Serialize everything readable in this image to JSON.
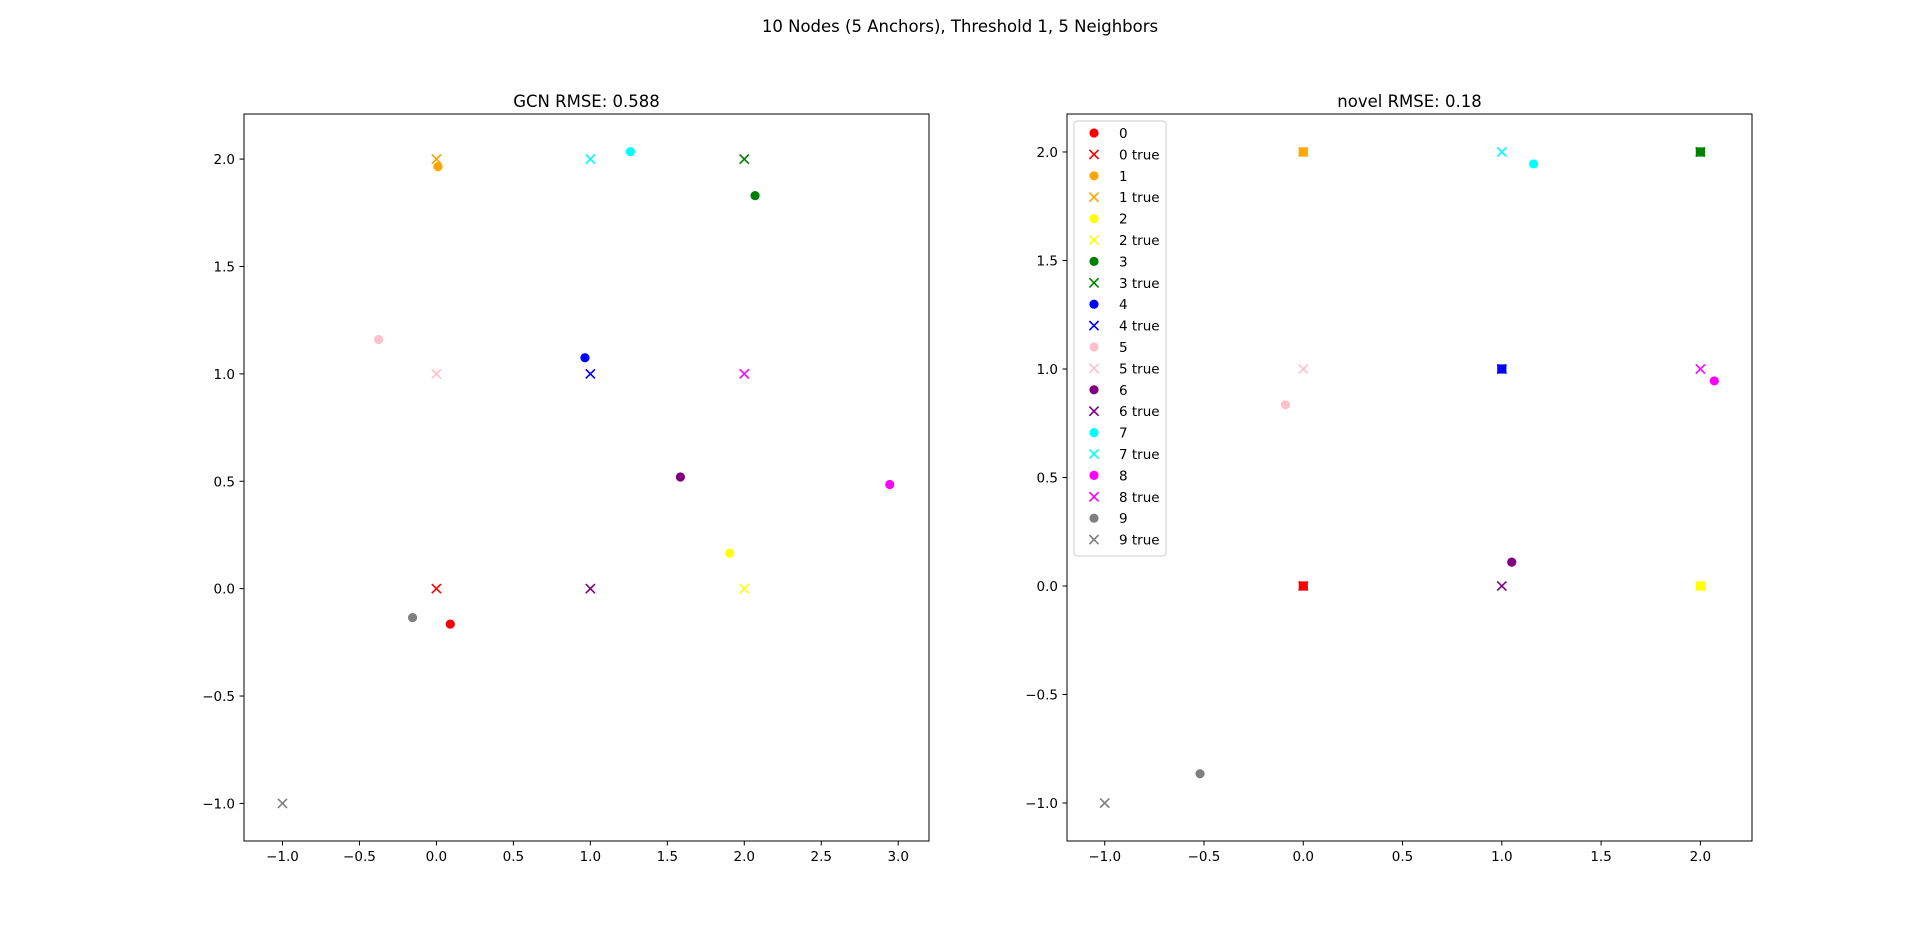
{
  "figure": {
    "suptitle": "10 Nodes (5 Anchors), Threshold 1, 5 Neighbors"
  },
  "chart_data": [
    {
      "type": "scatter",
      "title": "GCN RMSE: 0.588",
      "xlim": [
        -1.25,
        3.2
      ],
      "ylim": [
        -1.175,
        2.21
      ],
      "xticks": [
        -1.0,
        -0.5,
        0.0,
        0.5,
        1.0,
        1.5,
        2.0,
        2.5,
        3.0
      ],
      "xtick_labels": [
        "−1.0",
        "−0.5",
        "0.0",
        "0.5",
        "1.0",
        "1.5",
        "2.0",
        "2.5",
        "3.0"
      ],
      "yticks": [
        -1.0,
        -0.5,
        0.0,
        0.5,
        1.0,
        1.5,
        2.0
      ],
      "ytick_labels": [
        "−1.0",
        "−0.5",
        "0.0",
        "0.5",
        "1.0",
        "1.5",
        "2.0"
      ],
      "grid": false,
      "legend": null,
      "series": [
        {
          "node": 0,
          "color": "#ff0000",
          "pred": [
            0.09,
            -0.165
          ],
          "true": [
            0.0,
            0.0
          ],
          "pred_marker": "circle"
        },
        {
          "node": 1,
          "color": "#ffa500",
          "pred": [
            0.01,
            1.965
          ],
          "true": [
            0.0,
            2.0
          ],
          "pred_marker": "circle"
        },
        {
          "node": 2,
          "color": "#ffff00",
          "pred": [
            1.905,
            0.165
          ],
          "true": [
            2.0,
            0.0
          ],
          "pred_marker": "circle"
        },
        {
          "node": 3,
          "color": "#008000",
          "pred": [
            2.07,
            1.83
          ],
          "true": [
            2.0,
            2.0
          ],
          "pred_marker": "circle"
        },
        {
          "node": 4,
          "color": "#0000ff",
          "pred": [
            0.965,
            1.075
          ],
          "true": [
            1.0,
            1.0
          ],
          "pred_marker": "circle"
        },
        {
          "node": 5,
          "color": "#ffc0cb",
          "pred": [
            -0.375,
            1.16
          ],
          "true": [
            0.0,
            1.0
          ],
          "pred_marker": "circle"
        },
        {
          "node": 6,
          "color": "#800080",
          "pred": [
            1.585,
            0.52
          ],
          "true": [
            1.0,
            0.0
          ],
          "pred_marker": "circle"
        },
        {
          "node": 7,
          "color": "#00ffff",
          "pred": [
            1.26,
            2.035
          ],
          "true": [
            1.0,
            2.0
          ],
          "pred_marker": "circle"
        },
        {
          "node": 8,
          "color": "#ff00ff",
          "pred": [
            2.945,
            0.485
          ],
          "true": [
            2.0,
            1.0
          ],
          "pred_marker": "circle"
        },
        {
          "node": 9,
          "color": "#808080",
          "pred": [
            -0.155,
            -0.135
          ],
          "true": [
            -1.0,
            -1.0
          ],
          "pred_marker": "circle"
        }
      ]
    },
    {
      "type": "scatter",
      "title": "novel RMSE: 0.18",
      "xlim": [
        -1.19,
        2.26
      ],
      "ylim": [
        -1.175,
        2.175
      ],
      "xticks": [
        -1.0,
        -0.5,
        0.0,
        0.5,
        1.0,
        1.5,
        2.0
      ],
      "xtick_labels": [
        "−1.0",
        "−0.5",
        "0.0",
        "0.5",
        "1.0",
        "1.5",
        "2.0"
      ],
      "yticks": [
        -1.0,
        -0.5,
        0.0,
        0.5,
        1.0,
        1.5,
        2.0
      ],
      "ytick_labels": [
        "−1.0",
        "−0.5",
        "0.0",
        "0.5",
        "1.0",
        "1.5",
        "2.0"
      ],
      "grid": false,
      "legend": "top-left",
      "legend_entries": [
        "0",
        "0 true",
        "1",
        "1 true",
        "2",
        "2 true",
        "3",
        "3 true",
        "4",
        "4 true",
        "5",
        "5 true",
        "6",
        "6 true",
        "7",
        "7 true",
        "8",
        "8 true",
        "9",
        "9 true"
      ],
      "series": [
        {
          "node": 0,
          "color": "#ff0000",
          "pred": [
            0.0,
            0.0
          ],
          "true": [
            0.0,
            0.0
          ],
          "pred_marker": "square"
        },
        {
          "node": 1,
          "color": "#ffa500",
          "pred": [
            0.0,
            2.0
          ],
          "true": [
            0.0,
            2.0
          ],
          "pred_marker": "square"
        },
        {
          "node": 2,
          "color": "#ffff00",
          "pred": [
            2.0,
            0.0
          ],
          "true": [
            2.0,
            0.0
          ],
          "pred_marker": "square"
        },
        {
          "node": 3,
          "color": "#008000",
          "pred": [
            2.0,
            2.0
          ],
          "true": [
            2.0,
            2.0
          ],
          "pred_marker": "square"
        },
        {
          "node": 4,
          "color": "#0000ff",
          "pred": [
            1.0,
            1.0
          ],
          "true": [
            1.0,
            1.0
          ],
          "pred_marker": "square"
        },
        {
          "node": 5,
          "color": "#ffc0cb",
          "pred": [
            -0.09,
            0.835
          ],
          "true": [
            0.0,
            1.0
          ],
          "pred_marker": "circle"
        },
        {
          "node": 6,
          "color": "#800080",
          "pred": [
            1.05,
            0.11
          ],
          "true": [
            1.0,
            0.0
          ],
          "pred_marker": "circle"
        },
        {
          "node": 7,
          "color": "#00ffff",
          "pred": [
            1.16,
            1.945
          ],
          "true": [
            1.0,
            2.0
          ],
          "pred_marker": "circle"
        },
        {
          "node": 8,
          "color": "#ff00ff",
          "pred": [
            2.07,
            0.945
          ],
          "true": [
            2.0,
            1.0
          ],
          "pred_marker": "circle"
        },
        {
          "node": 9,
          "color": "#808080",
          "pred": [
            -0.52,
            -0.865
          ],
          "true": [
            -1.0,
            -1.0
          ],
          "pred_marker": "circle"
        }
      ]
    }
  ]
}
